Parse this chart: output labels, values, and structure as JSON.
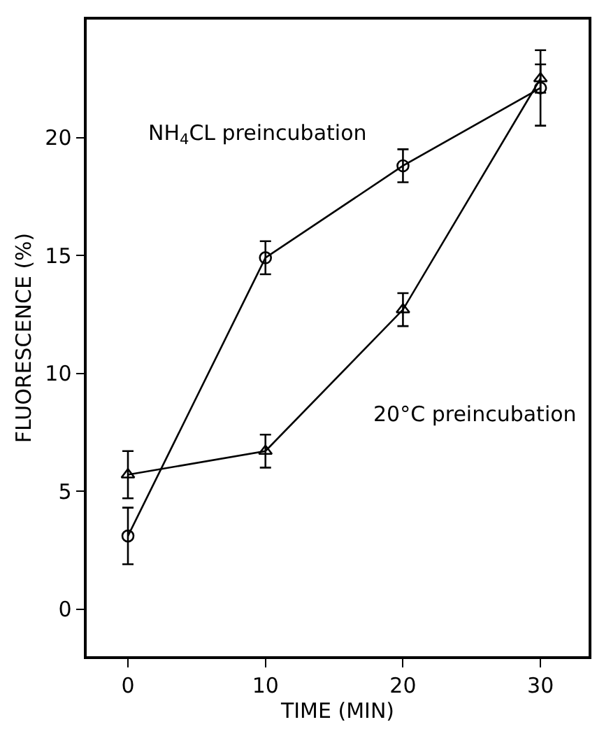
{
  "chart_data": {
    "type": "line",
    "xlabel": "TIME (MIN)",
    "ylabel": "FLUORESCENCE (%)",
    "x": [
      0,
      10,
      20,
      30
    ],
    "series": [
      {
        "name": "NH$_{4}$CL preincubation",
        "color": "#000000",
        "marker": "circle",
        "values": [
          3.1,
          14.9,
          18.8,
          22.1
        ],
        "errors": [
          1.2,
          0.7,
          0.7,
          1.6
        ]
      },
      {
        "name": "20°C preincubation",
        "color": "#000000",
        "marker": "triangle",
        "values": [
          5.7,
          6.7,
          12.7,
          22.5
        ],
        "errors": [
          1.0,
          0.7,
          0.7,
          0.6
        ]
      }
    ],
    "xlim": [
      -3,
      33.5
    ],
    "xticks": [
      0,
      10,
      20,
      30
    ],
    "ylim": [
      -2,
      25
    ],
    "yticks": [
      0,
      5,
      10,
      15,
      20
    ],
    "grid": false,
    "legend": false,
    "line_style": "solid"
  }
}
